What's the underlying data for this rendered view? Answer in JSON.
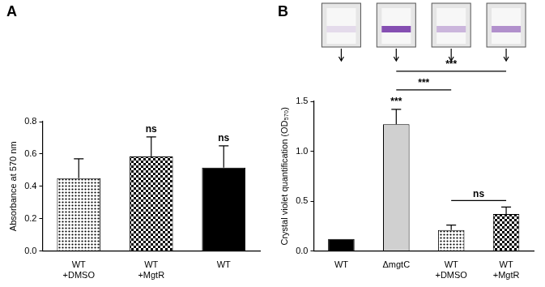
{
  "chart_data": [
    {
      "type": "bar",
      "title": "A",
      "y_label": "Absorbance at 570 nm",
      "categories": [
        "WT\n+DMSO",
        "WT\n+MgtR",
        "WT"
      ],
      "values": [
        0.45,
        0.585,
        0.515
      ],
      "errors": [
        0.12,
        0.12,
        0.135
      ],
      "colors": [
        "#000000",
        "#000000",
        "#000000"
      ],
      "ylim": [
        0,
        0.8
      ],
      "yticks": [
        {
          "value": 0,
          "label": "0.0"
        },
        0.2,
        0.4,
        0.6,
        0.8
      ],
      "grid": false,
      "annotations": [
        {
          "text": "ns",
          "at": "WT\n+MgtR"
        },
        {
          "text": "ns",
          "at": "WT"
        }
      ]
    },
    {
      "type": "bar",
      "title": "B",
      "y_label": "Crystal violet quantification (OD₅₇₀)",
      "categories": [
        "WT",
        "ΔmgtC",
        "WT\n+DMSO",
        "WT\n+MgtR"
      ],
      "values": [
        0.12,
        1.27,
        0.21,
        0.37
      ],
      "errors": [
        0,
        0.15,
        0.05,
        0.07
      ],
      "colors": [
        "#000000",
        "#d0d0d0",
        "#000000",
        "#000000"
      ],
      "ylim": [
        0,
        1.5
      ],
      "yticks": [
        {
          "value": 0,
          "label": "0.0"
        },
        0.5,
        {
          "value": 1,
          "label": "1.0"
        },
        1.5
      ],
      "grid": false,
      "annotations": [
        {
          "text": "***",
          "at": "ΔmgtC"
        },
        {
          "text": "ns",
          "from": "WT\n+DMSO",
          "to": "WT\n+MgtR"
        },
        {
          "text": "***",
          "from": "ΔmgtC",
          "to": "WT\n+DMSO"
        },
        {
          "text": "***",
          "from": "ΔmgtC",
          "to": "WT\n+MgtR"
        }
      ]
    }
  ]
}
